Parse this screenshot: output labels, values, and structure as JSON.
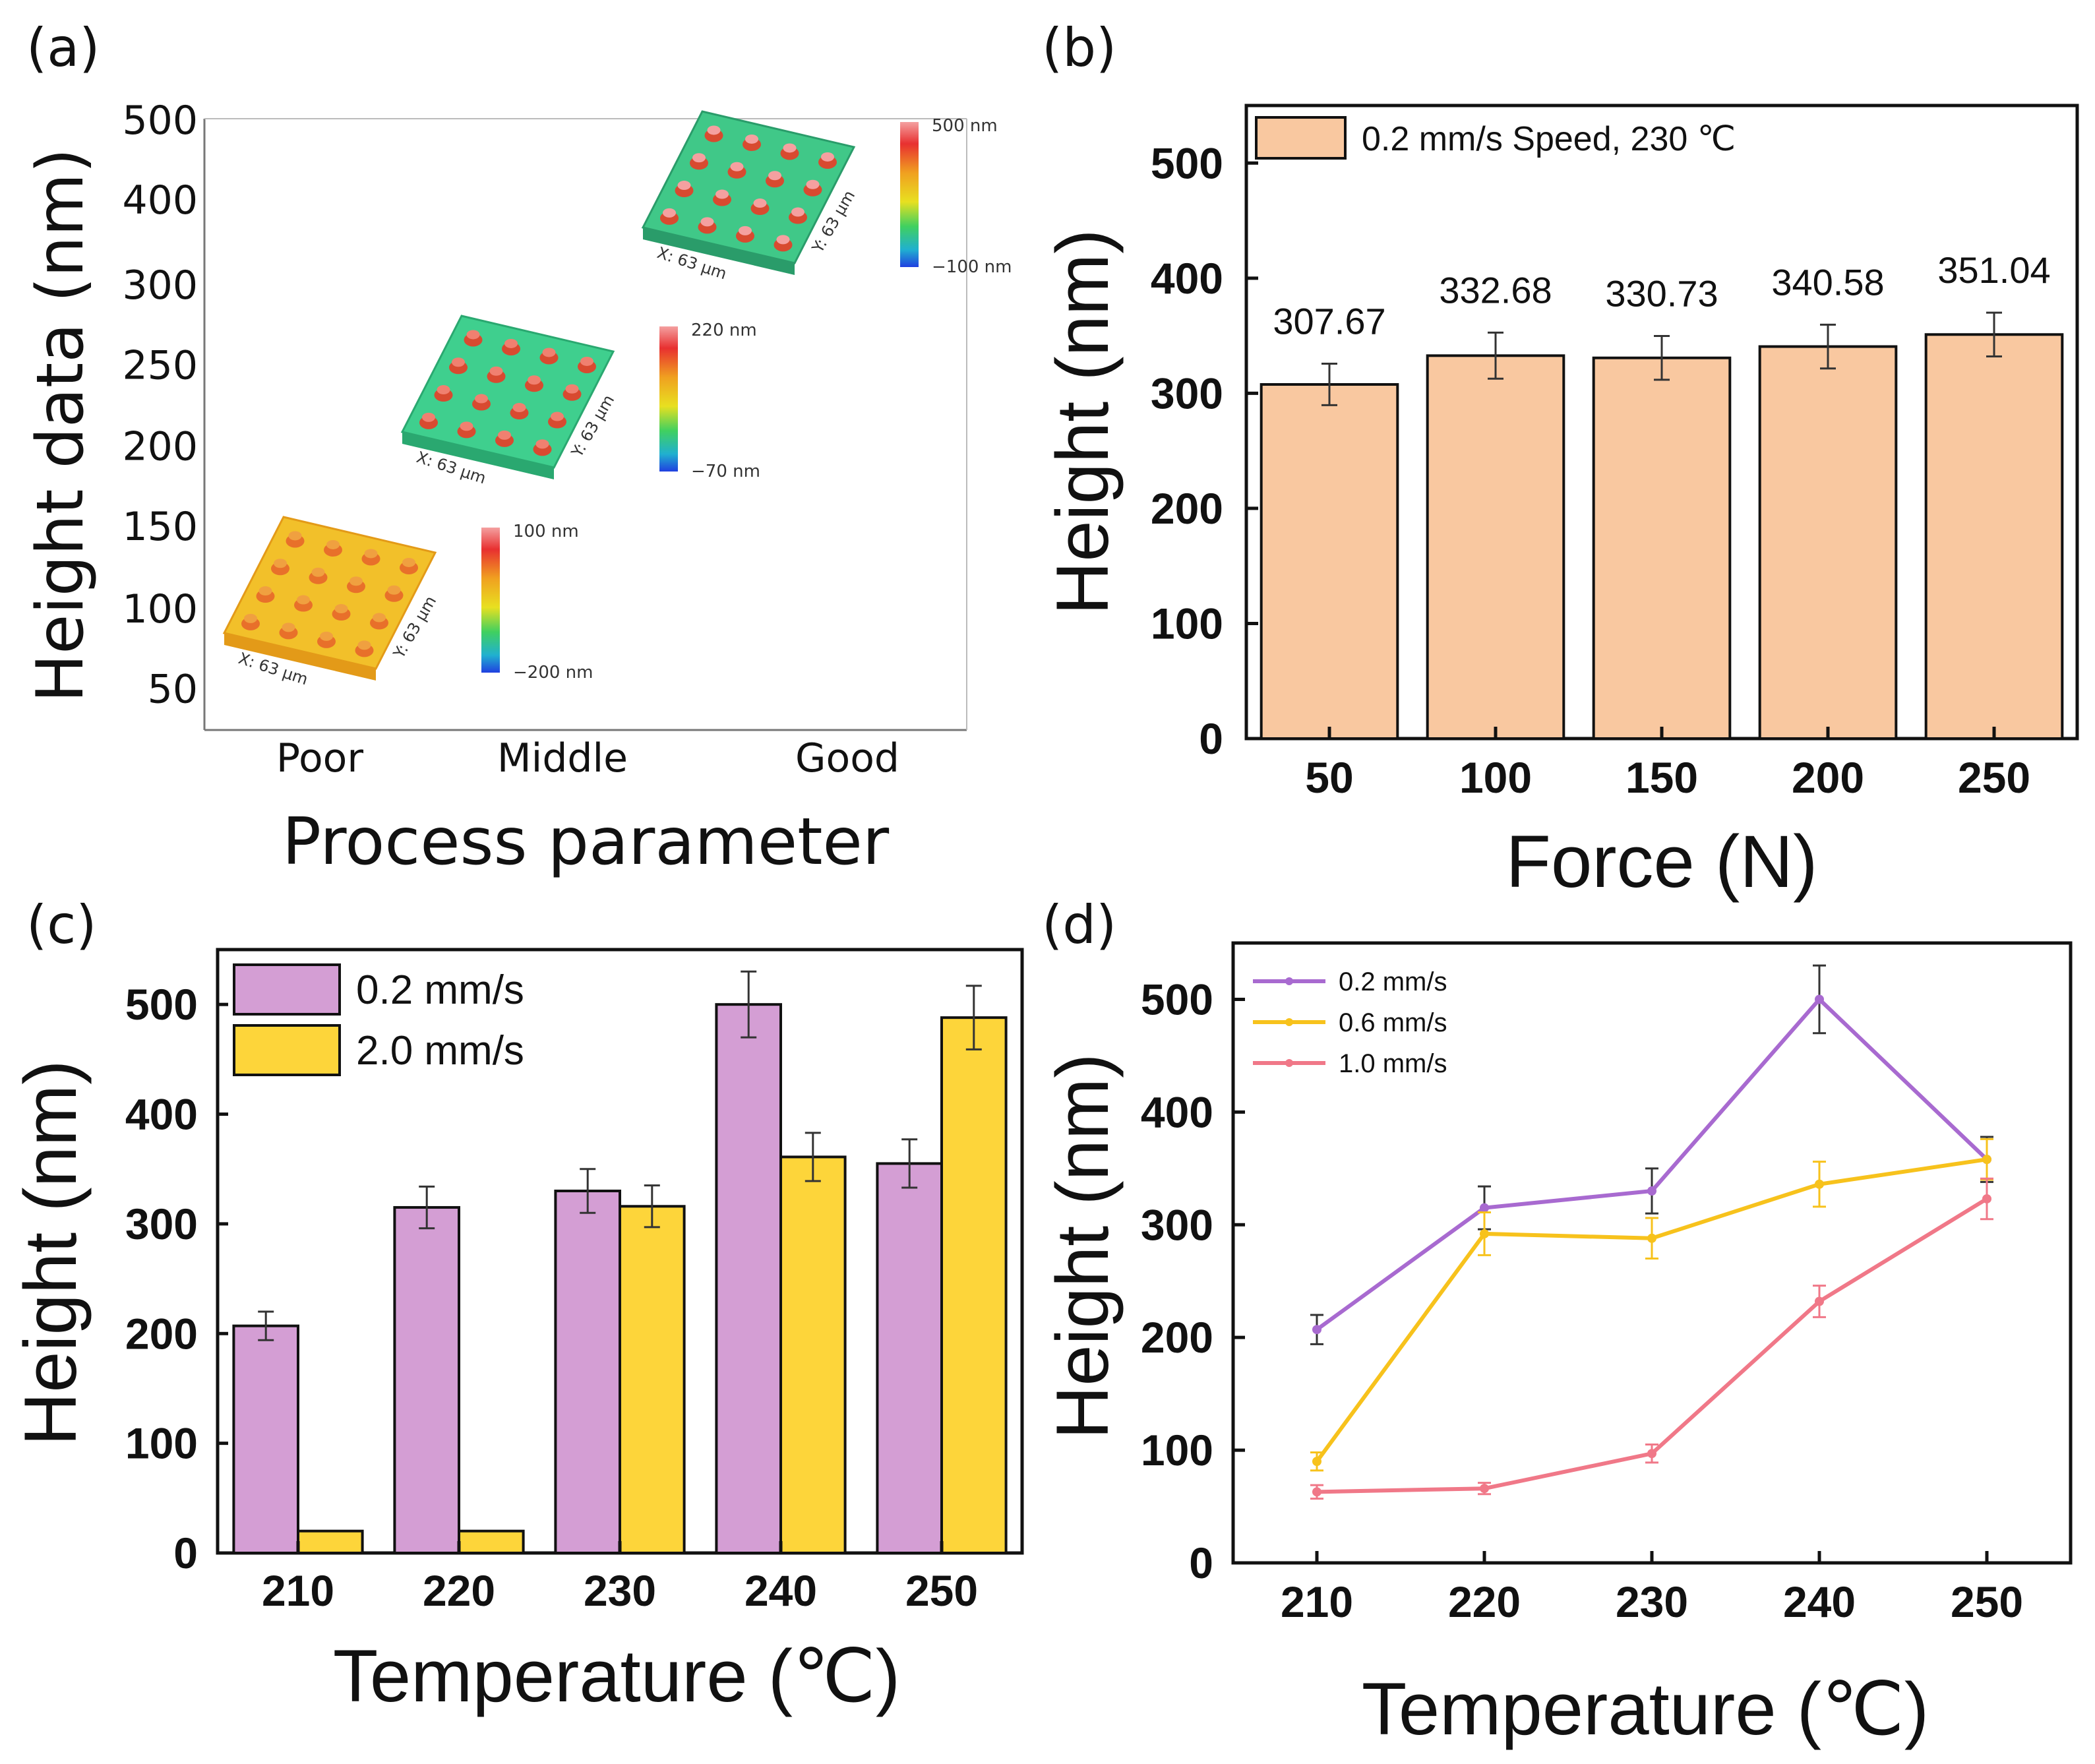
{
  "chart_data": [
    {
      "panel": "(a)",
      "type": "scatter",
      "ylabel": "Height data (nm)",
      "xlabel": "Process parameter",
      "categories": [
        "Poor",
        "Middle",
        "Good"
      ],
      "yticks": [
        "500",
        "400",
        "300",
        "250",
        "200",
        "150",
        "100",
        "50"
      ],
      "insets": [
        {
          "category": "Poor",
          "colorbar_max": "100 nm",
          "colorbar_min": "−200 nm",
          "x_dim": "X: 63 μm",
          "y_dim": "Y: 63 μm"
        },
        {
          "category": "Middle",
          "colorbar_max": "220 nm",
          "colorbar_min": "−70 nm",
          "x_dim": "X: 63 μm",
          "y_dim": "Y: 63 μm"
        },
        {
          "category": "Good",
          "colorbar_max": "500 nm",
          "colorbar_min": "−100 nm",
          "x_dim": "X: 63 μm",
          "y_dim": "Y: 63 μm"
        }
      ]
    },
    {
      "panel": "(b)",
      "type": "bar",
      "legend": "0.2 mm/s Speed, 230 ℃",
      "xlabel": "Force (N)",
      "ylabel": "Height (nm)",
      "categories": [
        "50",
        "100",
        "150",
        "200",
        "250"
      ],
      "values": [
        307.67,
        332.68,
        330.73,
        340.58,
        351.04
      ],
      "value_labels": [
        "307.67",
        "332.68",
        "330.73",
        "340.58",
        "351.04"
      ],
      "errors": [
        18,
        20,
        19,
        19,
        19
      ],
      "ylim": [
        0,
        550
      ],
      "yticks": [
        0,
        100,
        200,
        300,
        400,
        500
      ],
      "color": "#f9c8a0"
    },
    {
      "panel": "(c)",
      "type": "bar",
      "xlabel": "Temperature (℃)",
      "ylabel": "Height (nm)",
      "categories": [
        "210",
        "220",
        "230",
        "240",
        "250"
      ],
      "series": [
        {
          "name": "0.2 mm/s",
          "values": [
            207,
            315,
            330,
            500,
            355
          ],
          "errors": [
            13,
            19,
            20,
            30,
            22
          ],
          "color": "#d49ed4"
        },
        {
          "name": "2.0 mm/s",
          "values": [
            20,
            20,
            316,
            361,
            488
          ],
          "errors": [
            0,
            0,
            19,
            22,
            29
          ],
          "color": "#fdd53a"
        }
      ],
      "ylim": [
        0,
        550
      ],
      "yticks": [
        0,
        100,
        200,
        300,
        400,
        500
      ]
    },
    {
      "panel": "(d)",
      "type": "line",
      "xlabel": "Temperature (℃)",
      "ylabel": "Height (nm)",
      "x": [
        210,
        220,
        230,
        240,
        250
      ],
      "series": [
        {
          "name": "0.2 mm/s",
          "values": [
            207,
            315,
            330,
            500,
            358
          ],
          "errors": [
            13,
            19,
            20,
            30,
            20
          ],
          "color": "#a86ad0"
        },
        {
          "name": "0.6 mm/s",
          "values": [
            90,
            292,
            288,
            336,
            358
          ],
          "errors": [
            8,
            19,
            18,
            20,
            18
          ],
          "color": "#f7c21c"
        },
        {
          "name": "1.0 mm/s",
          "values": [
            63,
            66,
            97,
            232,
            323
          ],
          "errors": [
            6,
            5,
            8,
            14,
            18
          ],
          "color": "#f07888"
        }
      ],
      "xlim": [
        205,
        255
      ],
      "ylim": [
        0,
        550
      ],
      "yticks": [
        0,
        100,
        200,
        300,
        400,
        500
      ]
    }
  ]
}
